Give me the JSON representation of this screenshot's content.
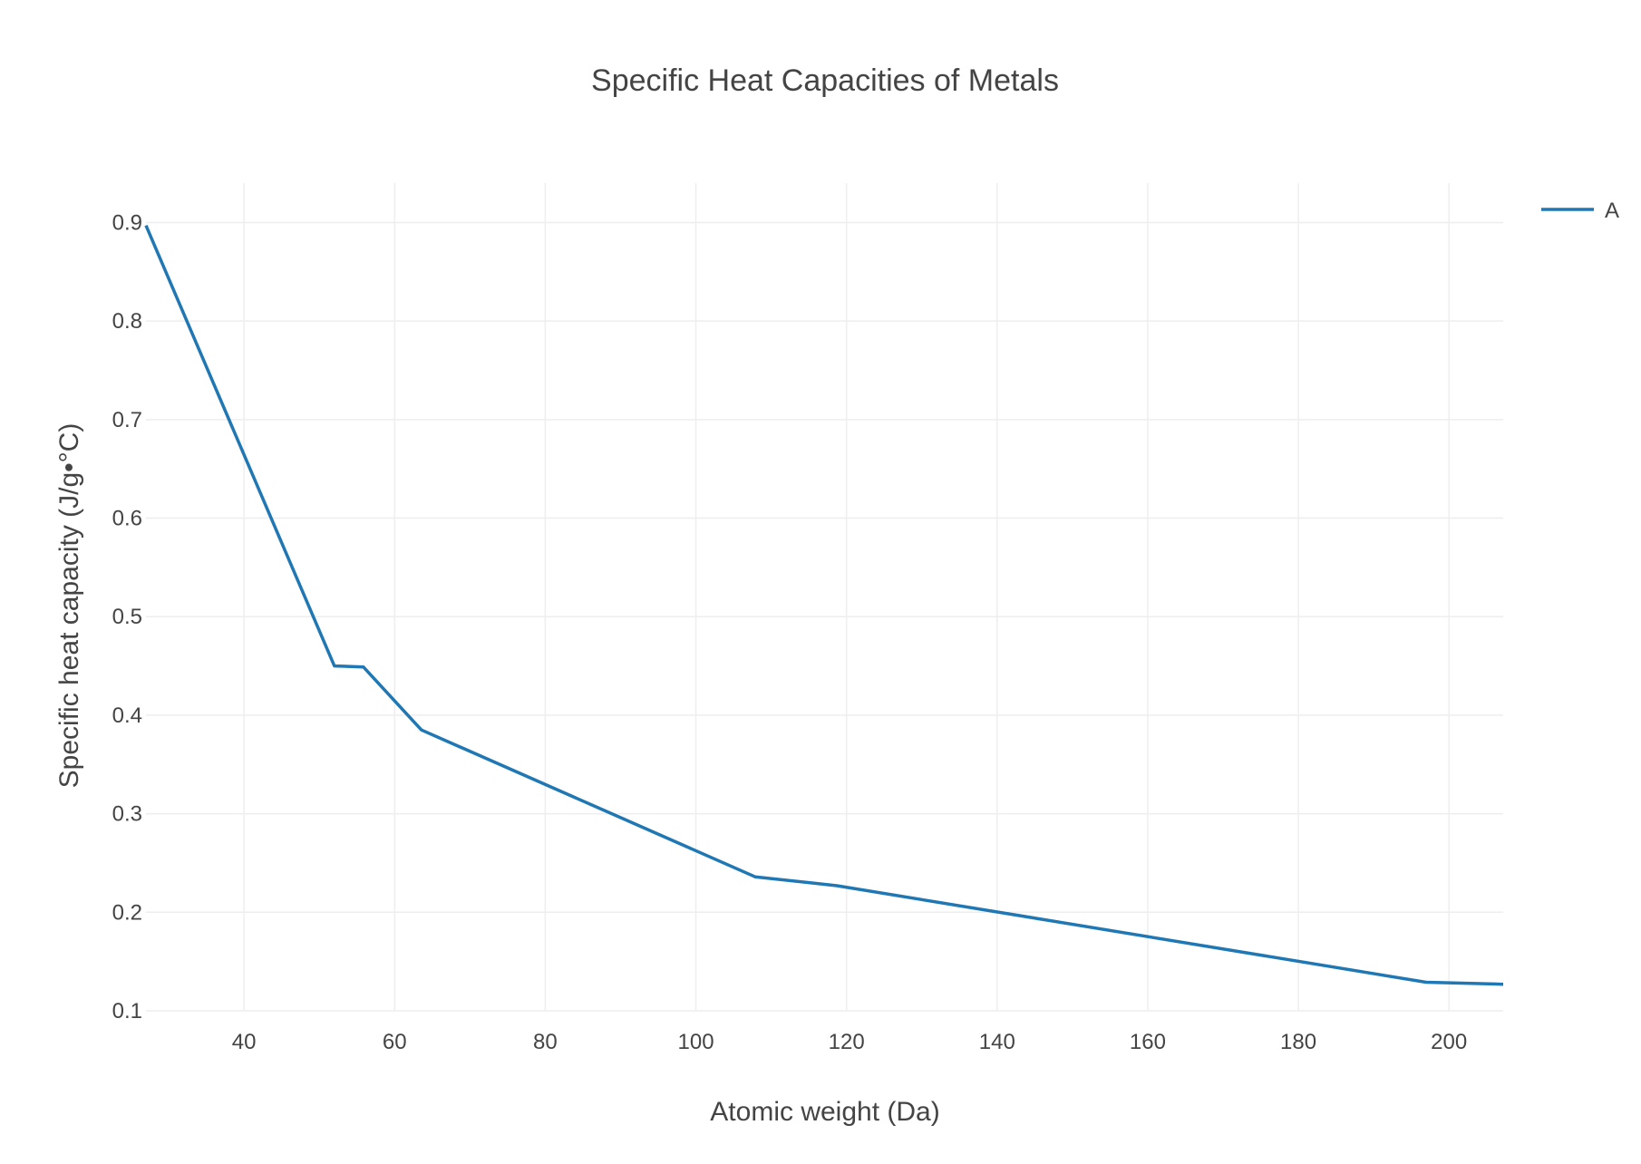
{
  "chart_data": {
    "type": "line",
    "title": "Specific Heat Capacities of Metals",
    "xlabel": "Atomic weight (Da)",
    "ylabel": "Specific heat capacity (J/g•°C)",
    "xlim": [
      26.98,
      207.2
    ],
    "ylim": [
      0.1,
      0.94
    ],
    "x_ticks": [
      40,
      60,
      80,
      100,
      120,
      140,
      160,
      180,
      200
    ],
    "y_ticks": [
      0.1,
      0.2,
      0.3,
      0.4,
      0.5,
      0.6,
      0.7,
      0.8,
      0.9
    ],
    "grid": true,
    "legend_position": "top-right",
    "series": [
      {
        "name": "A",
        "color": "#1f77b4",
        "x": [
          26.98,
          52.0,
          55.85,
          63.55,
          107.87,
          118.71,
          196.97,
          207.2
        ],
        "y": [
          0.897,
          0.45,
          0.449,
          0.385,
          0.236,
          0.227,
          0.129,
          0.127
        ]
      }
    ]
  }
}
